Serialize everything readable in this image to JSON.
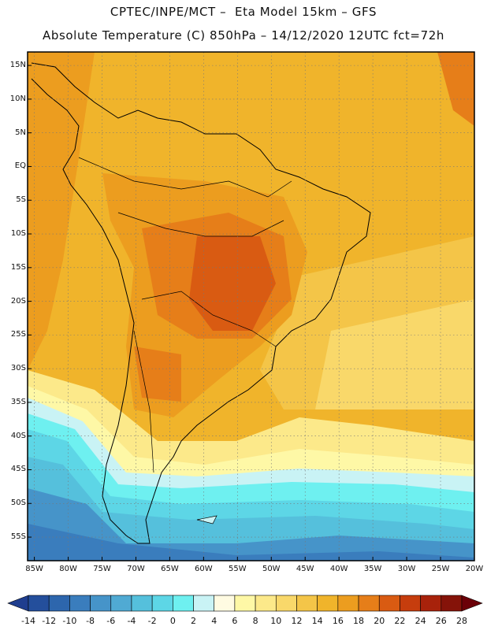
{
  "header": {
    "line1": "CPTEC/INPE/MCT –  Eta Model 15km – GFS",
    "line2": "Absolute Temperature (C) 850hPa – 14/12/2020 12UTC fct=72h"
  },
  "map": {
    "lat_labels": [
      "15N",
      "10N",
      "5N",
      "EQ",
      "5S",
      "10S",
      "15S",
      "20S",
      "25S",
      "30S",
      "35S",
      "40S",
      "45S",
      "50S",
      "55S"
    ],
    "lon_labels": [
      "85W",
      "80W",
      "75W",
      "70W",
      "65W",
      "60W",
      "55W",
      "50W",
      "45W",
      "40W",
      "35W",
      "30W",
      "25W",
      "20W"
    ],
    "latitudes": [
      15,
      10,
      5,
      0,
      -5,
      -10,
      -15,
      -20,
      -25,
      -30,
      -35,
      -40,
      -45,
      -50,
      -55
    ],
    "longitudes": [
      -85,
      -80,
      -75,
      -70,
      -65,
      -60,
      -55,
      -50,
      -45,
      -40,
      -35,
      -30,
      -25,
      -20
    ],
    "lat_range": [
      -58.5,
      17
    ],
    "lon_range": [
      -86,
      -20
    ]
  },
  "colorbar": {
    "labels": [
      "-14",
      "-12",
      "-10",
      "-8",
      "-6",
      "-4",
      "-2",
      "0",
      "2",
      "4",
      "6",
      "8",
      "10",
      "12",
      "14",
      "16",
      "18",
      "20",
      "22",
      "24",
      "26",
      "28"
    ],
    "colors": [
      "#1f3e8f",
      "#244f9c",
      "#2d66ad",
      "#3a7dbd",
      "#4694c9",
      "#50aad3",
      "#55c0dc",
      "#5dd6e6",
      "#6ef0f0",
      "#c9f3f5",
      "#fffbe2",
      "#fef8a6",
      "#fce98a",
      "#f9d86a",
      "#f4c548",
      "#f0b42b",
      "#ec9d1f",
      "#e67e19",
      "#d95b12",
      "#c63d0d",
      "#a8220b",
      "#851309",
      "#6b0008"
    ]
  }
}
